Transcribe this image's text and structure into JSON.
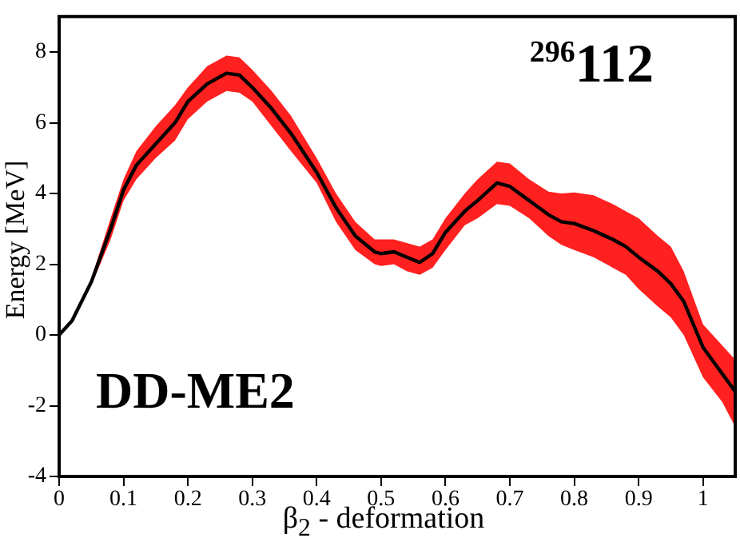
{
  "chart_data": {
    "type": "line",
    "xlabel": "β$_{2}$ - deformation",
    "ylabel": "Energy  [MeV]",
    "annotations": [
      "$^{296}$112",
      "DD-ME2"
    ],
    "x": [
      0,
      0.02,
      0.05,
      0.08,
      0.1,
      0.12,
      0.15,
      0.18,
      0.2,
      0.23,
      0.26,
      0.28,
      0.3,
      0.33,
      0.36,
      0.4,
      0.43,
      0.46,
      0.49,
      0.5,
      0.52,
      0.54,
      0.56,
      0.58,
      0.6,
      0.63,
      0.65,
      0.68,
      0.7,
      0.73,
      0.76,
      0.78,
      0.8,
      0.83,
      0.86,
      0.88,
      0.9,
      0.93,
      0.95,
      0.97,
      1.0,
      1.03,
      1.05
    ],
    "series": [
      {
        "color": "#000000",
        "values": [
          0,
          0.4,
          1.5,
          3.0,
          4.1,
          4.8,
          5.4,
          6.0,
          6.6,
          7.1,
          7.4,
          7.35,
          7.0,
          6.4,
          5.7,
          4.6,
          3.6,
          2.8,
          2.35,
          2.3,
          2.35,
          2.2,
          2.05,
          2.3,
          2.9,
          3.5,
          3.8,
          4.3,
          4.2,
          3.8,
          3.4,
          3.2,
          3.15,
          2.95,
          2.7,
          2.5,
          2.2,
          1.8,
          1.45,
          0.95,
          -0.35,
          -1.1,
          -1.6
        ],
        "upper": [
          0,
          0.45,
          1.6,
          3.3,
          4.4,
          5.2,
          5.9,
          6.5,
          7.0,
          7.6,
          7.9,
          7.85,
          7.5,
          6.9,
          6.2,
          5.0,
          4.0,
          3.2,
          2.7,
          2.7,
          2.7,
          2.6,
          2.5,
          2.7,
          3.3,
          4.0,
          4.4,
          4.9,
          4.85,
          4.4,
          4.05,
          4.0,
          4.03,
          3.95,
          3.7,
          3.5,
          3.3,
          2.8,
          2.5,
          1.8,
          0.3,
          -0.3,
          -0.7
        ],
        "lower": [
          0,
          0.35,
          1.4,
          2.7,
          3.8,
          4.4,
          5.0,
          5.5,
          6.1,
          6.6,
          6.9,
          6.85,
          6.6,
          5.9,
          5.2,
          4.3,
          3.2,
          2.4,
          2.0,
          1.95,
          2.0,
          1.8,
          1.7,
          1.9,
          2.4,
          3.1,
          3.3,
          3.7,
          3.65,
          3.3,
          2.8,
          2.55,
          2.4,
          2.2,
          1.9,
          1.7,
          1.3,
          0.8,
          0.5,
          0.0,
          -1.2,
          -1.9,
          -2.6
        ]
      }
    ],
    "xlim": [
      0,
      1.05
    ],
    "ylim": [
      -4,
      9
    ],
    "xticks": [
      0,
      0.1,
      0.2,
      0.3,
      0.4,
      0.5,
      0.6,
      0.7,
      0.8,
      0.9,
      1
    ],
    "yticks": [
      -4,
      -2,
      0,
      2,
      4,
      6,
      8
    ],
    "grid": false,
    "legend": false,
    "marker": "none",
    "line_style": "solid"
  }
}
